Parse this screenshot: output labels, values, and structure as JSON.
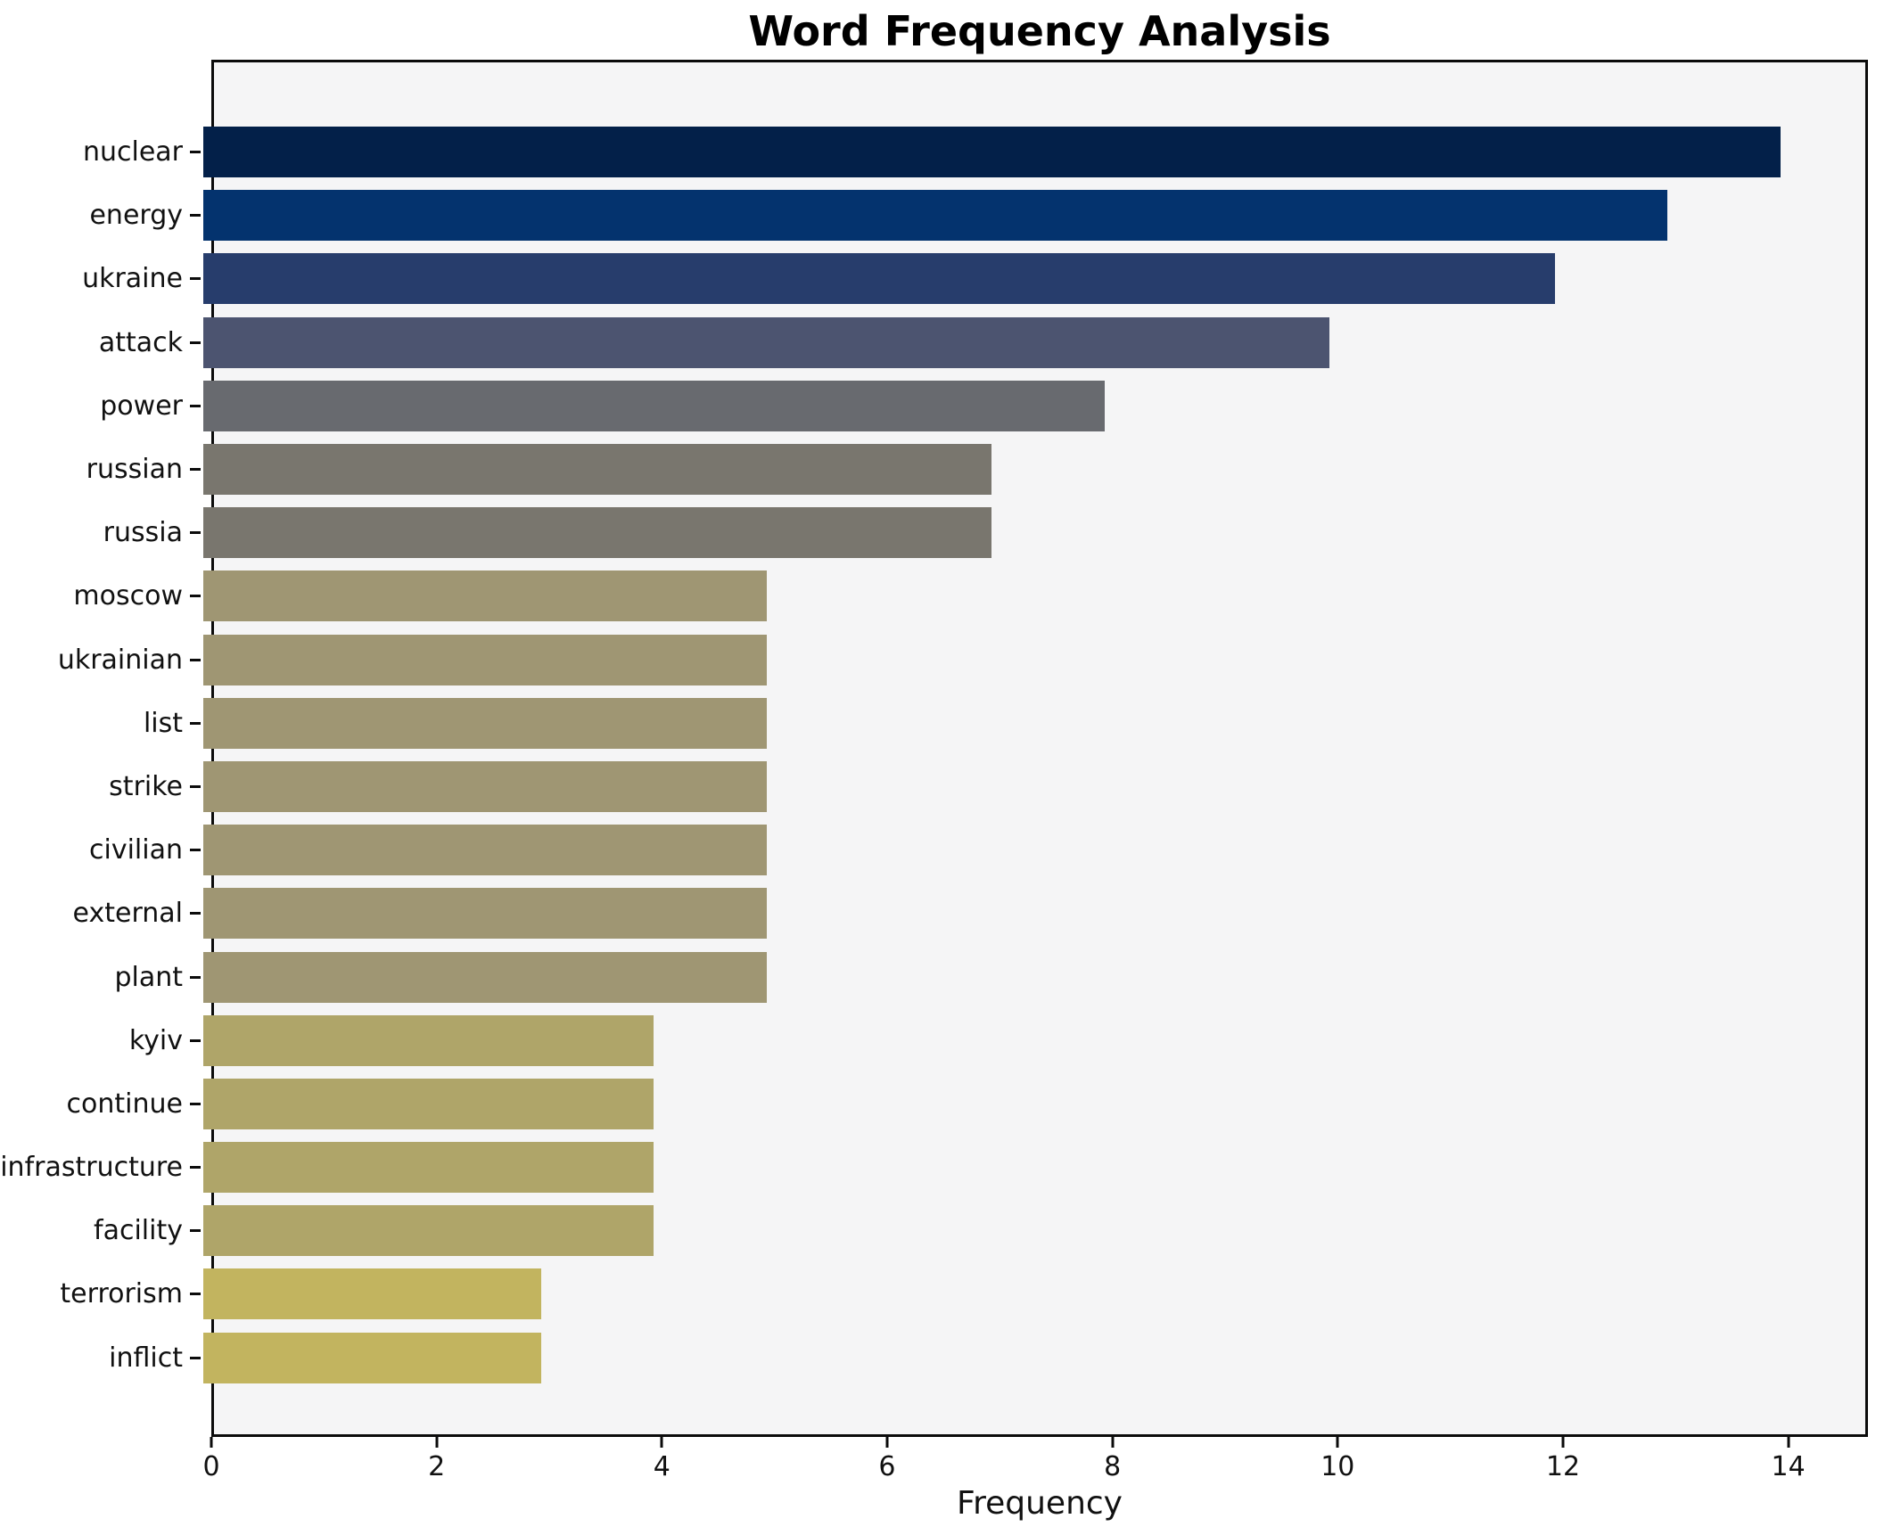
{
  "chart_data": {
    "type": "bar",
    "orientation": "horizontal",
    "title": "Word Frequency Analysis",
    "xlabel": "Frequency",
    "ylabel": "",
    "categories": [
      "nuclear",
      "energy",
      "ukraine",
      "attack",
      "power",
      "russian",
      "russia",
      "moscow",
      "ukrainian",
      "list",
      "strike",
      "civilian",
      "external",
      "plant",
      "kyiv",
      "continue",
      "infrastructure",
      "facility",
      "terrorism",
      "inflict"
    ],
    "values": [
      14,
      13,
      12,
      10,
      8,
      7,
      7,
      5,
      5,
      5,
      5,
      5,
      5,
      5,
      4,
      4,
      4,
      4,
      3,
      3
    ],
    "bar_colors": [
      "#032049",
      "#04336e",
      "#273d6c",
      "#4c5470",
      "#686a6f",
      "#79766e",
      "#79766e",
      "#9f9673",
      "#9f9673",
      "#9f9673",
      "#9f9673",
      "#9f9673",
      "#9f9673",
      "#9f9673",
      "#afa569",
      "#afa569",
      "#afa569",
      "#afa569",
      "#c2b45f",
      "#c2b45f"
    ],
    "xticks": [
      0,
      2,
      4,
      6,
      8,
      10,
      12,
      14
    ],
    "xlim": [
      0,
      14.66
    ],
    "grid": false,
    "legend_position": "none",
    "plot_background": "#f5f5f6",
    "spine_color": "#0b0b0b"
  }
}
